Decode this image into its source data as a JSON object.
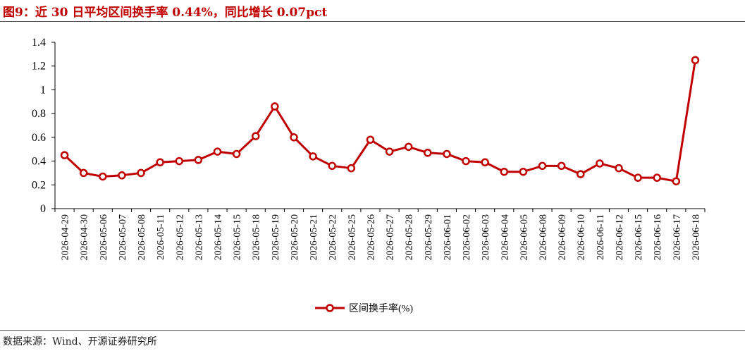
{
  "header": {
    "title": "图9：近 30 日平均区间换手率 0.44%，同比增长 0.07pct"
  },
  "footer": {
    "source": "数据来源：Wind、开源证券研究所"
  },
  "colors": {
    "series": "#c00000",
    "title": "#c00000",
    "axis": "#000000"
  },
  "chart_data": {
    "type": "line",
    "title": "图9：近 30 日平均区间换手率 0.44%，同比增长 0.07pct",
    "xlabel": "",
    "ylabel": "",
    "ylim": [
      0,
      1.4
    ],
    "yticks": [
      "0",
      "0.2",
      "0.4",
      "0.6",
      "0.8",
      "1",
      "1.2",
      "1.4"
    ],
    "grid": false,
    "legend_position": "bottom",
    "marker": "hollow-circle",
    "categories": [
      "2026-04-29",
      "2026-04-30",
      "2026-05-06",
      "2026-05-07",
      "2026-05-08",
      "2026-05-11",
      "2026-05-12",
      "2026-05-13",
      "2026-05-14",
      "2026-05-15",
      "2026-05-18",
      "2026-05-19",
      "2026-05-20",
      "2026-05-21",
      "2026-05-22",
      "2026-05-25",
      "2026-05-26",
      "2026-05-27",
      "2026-05-28",
      "2026-05-29",
      "2026-06-01",
      "2026-06-02",
      "2026-06-03",
      "2026-06-04",
      "2026-06-05",
      "2026-06-08",
      "2026-06-09",
      "2026-06-10",
      "2026-06-11",
      "2026-06-12",
      "2026-06-15",
      "2026-06-16",
      "2026-06-17",
      "2026-06-18"
    ],
    "series": [
      {
        "name": "区间换手率(%)",
        "values": [
          0.45,
          0.3,
          0.27,
          0.28,
          0.3,
          0.39,
          0.4,
          0.41,
          0.48,
          0.46,
          0.61,
          0.86,
          0.6,
          0.44,
          0.36,
          0.34,
          0.58,
          0.48,
          0.52,
          0.47,
          0.46,
          0.4,
          0.39,
          0.31,
          0.31,
          0.36,
          0.36,
          0.29,
          0.38,
          0.34,
          0.26,
          0.26,
          0.23,
          1.25
        ]
      }
    ]
  }
}
